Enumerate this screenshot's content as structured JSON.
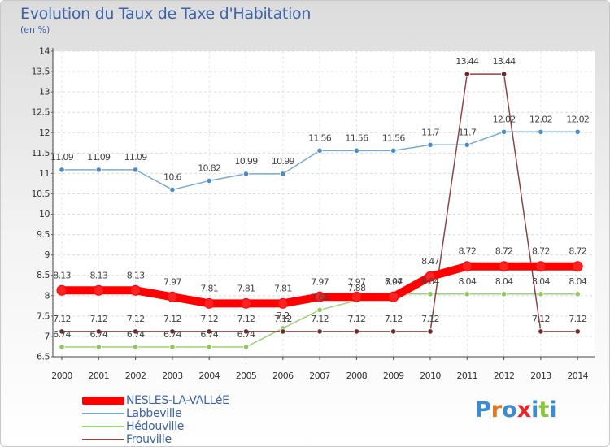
{
  "logo_text": "Proxiti",
  "chart_data": {
    "type": "line",
    "title": "Evolution du Taux de Taxe d'Habitation",
    "unit": "(en %)",
    "xlabel": "",
    "ylabel": "",
    "x": [
      "2000",
      "2001",
      "2002",
      "2003",
      "2004",
      "2005",
      "2006",
      "2007",
      "2008",
      "2009",
      "2010",
      "2011",
      "2012",
      "2013",
      "2014"
    ],
    "ylim": [
      6.5,
      14
    ],
    "yticks": [
      "6.5",
      "7",
      "7.5",
      "8",
      "8.5",
      "9",
      "9.5",
      "10",
      "10.5",
      "11",
      "11.5",
      "12",
      "12.5",
      "13",
      "13.5",
      "14"
    ],
    "grid": true,
    "legend": "bottom-left",
    "series": [
      {
        "name": "NESLES-LA-VALLéE",
        "color": "#ff0000",
        "marker": "#ff2222",
        "values": [
          8.13,
          8.13,
          8.13,
          7.97,
          7.81,
          7.81,
          7.81,
          7.97,
          7.97,
          7.97,
          8.47,
          8.72,
          8.72,
          8.72,
          8.72
        ],
        "labels": [
          "8.13",
          "8.13",
          "8.13",
          "7.97",
          "7.81",
          "7.81",
          "7.81",
          "7.97",
          "7.97",
          "7.97",
          "8.47",
          "8.72",
          "8.72",
          "8.72",
          "8.72"
        ]
      },
      {
        "name": "Labbeville",
        "color": "#7aaad2",
        "marker": "#4a8cc8",
        "values": [
          11.09,
          11.09,
          11.09,
          10.6,
          10.82,
          10.99,
          10.99,
          11.56,
          11.56,
          11.56,
          11.7,
          11.7,
          12.02,
          12.02,
          12.02
        ],
        "labels": [
          "11.09",
          "11.09",
          "11.09",
          "10.6",
          "10.82",
          "10.99",
          "10.99",
          "11.56",
          "11.56",
          "11.56",
          "11.7",
          "11.7",
          "12.02",
          "12.02",
          "12.02"
        ]
      },
      {
        "name": "Hédouville",
        "color": "#9cd27a",
        "marker": "#8cc85a",
        "values": [
          6.74,
          6.74,
          6.74,
          6.74,
          6.74,
          6.74,
          7.2,
          7.65,
          7.88,
          8.04,
          8.04,
          8.04,
          8.04,
          8.04,
          8.04
        ],
        "labels": [
          "6.74",
          "6.74",
          "6.74",
          "6.74",
          "6.74",
          "6.74",
          "7.2",
          "7.65",
          "7.88",
          "8.04",
          "8.04",
          "8.04",
          "8.04",
          "8.04",
          "8.04"
        ]
      },
      {
        "name": "Frouville",
        "color": "#8c4646",
        "marker": "#6e2a2a",
        "values": [
          7.12,
          7.12,
          7.12,
          7.12,
          7.12,
          7.12,
          7.12,
          7.12,
          7.12,
          7.12,
          7.12,
          13.44,
          13.44,
          7.12,
          7.12
        ],
        "labels": [
          "7.12",
          "7.12",
          "7.12",
          "7.12",
          "7.12",
          "7.12",
          "7.12",
          "7.12",
          "7.12",
          "7.12",
          "7.12",
          "13.44",
          "13.44",
          "7.12",
          "7.12"
        ]
      }
    ]
  }
}
